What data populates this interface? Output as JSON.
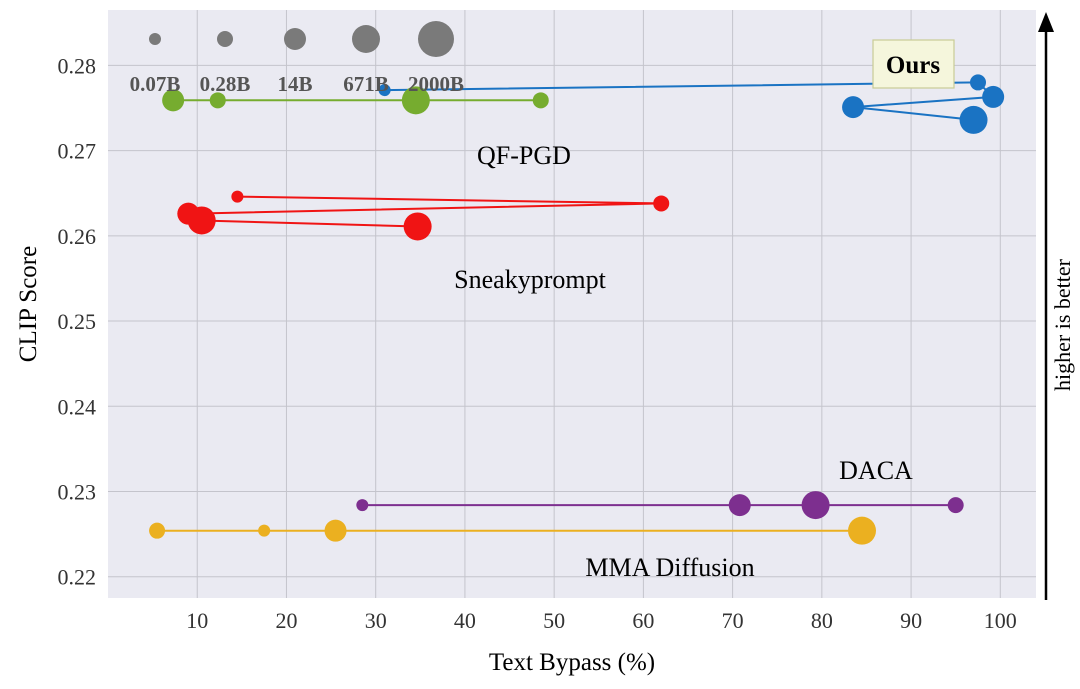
{
  "chart_data": {
    "type": "scatter",
    "xlabel": "Text Bypass (%)",
    "ylabel": "CLIP Score",
    "xlim": [
      0,
      104
    ],
    "ylim": [
      0.2175,
      0.2865
    ],
    "xticks": [
      10,
      20,
      30,
      40,
      50,
      60,
      70,
      80,
      90,
      100
    ],
    "yticks": [
      0.22,
      0.23,
      0.24,
      0.25,
      0.26,
      0.27,
      0.28
    ],
    "xtick_labels": [
      "10",
      "20",
      "30",
      "40",
      "50",
      "60",
      "70",
      "80",
      "90",
      "100"
    ],
    "ytick_labels": [
      "0.22",
      "0.23",
      "0.24",
      "0.25",
      "0.26",
      "0.27",
      "0.28"
    ],
    "grid": true,
    "size_legend": {
      "labels": [
        "0.07B",
        "0.28B",
        "14B",
        "671B",
        "2000B"
      ],
      "size_index": [
        0,
        1,
        2,
        3,
        4
      ]
    },
    "ours_label": "Ours",
    "arrow_label": "higher is better",
    "series": [
      {
        "name": "QF-PGD",
        "color": "#76ac2f",
        "points": [
          {
            "x": 7.3,
            "y": 0.2759,
            "size": 2
          },
          {
            "x": 12.3,
            "y": 0.2759,
            "size": 1
          },
          {
            "x": 34.5,
            "y": 0.2759,
            "size": 3
          },
          {
            "x": 48.5,
            "y": 0.2759,
            "size": 1
          }
        ]
      },
      {
        "name": "Ours",
        "color": "#1a73c3",
        "points": [
          {
            "x": 31.0,
            "y": 0.2771,
            "size": 0
          },
          {
            "x": 97.5,
            "y": 0.278,
            "size": 1
          },
          {
            "x": 99.2,
            "y": 0.2763,
            "size": 2
          },
          {
            "x": 83.5,
            "y": 0.2751,
            "size": 2
          },
          {
            "x": 97.0,
            "y": 0.2736,
            "size": 3
          }
        ]
      },
      {
        "name": "Sneakyprompt",
        "color": "#f01414",
        "points": [
          {
            "x": 14.5,
            "y": 0.2646,
            "size": 0
          },
          {
            "x": 62.0,
            "y": 0.2638,
            "size": 1
          },
          {
            "x": 9.0,
            "y": 0.2626,
            "size": 2
          },
          {
            "x": 10.5,
            "y": 0.2618,
            "size": 3
          },
          {
            "x": 34.7,
            "y": 0.2611,
            "size": 3
          }
        ]
      },
      {
        "name": "DACA",
        "color": "#7d2f8f",
        "points": [
          {
            "x": 28.5,
            "y": 0.2284,
            "size": 0
          },
          {
            "x": 70.8,
            "y": 0.2284,
            "size": 2
          },
          {
            "x": 79.3,
            "y": 0.2284,
            "size": 3
          },
          {
            "x": 95.0,
            "y": 0.2284,
            "size": 1
          }
        ]
      },
      {
        "name": "MMA Diffusion",
        "color": "#ebb020",
        "points": [
          {
            "x": 5.5,
            "y": 0.2254,
            "size": 1
          },
          {
            "x": 17.5,
            "y": 0.2254,
            "size": 0
          },
          {
            "x": 25.5,
            "y": 0.2254,
            "size": 2
          },
          {
            "x": 84.5,
            "y": 0.2254,
            "size": 3
          }
        ]
      }
    ]
  }
}
